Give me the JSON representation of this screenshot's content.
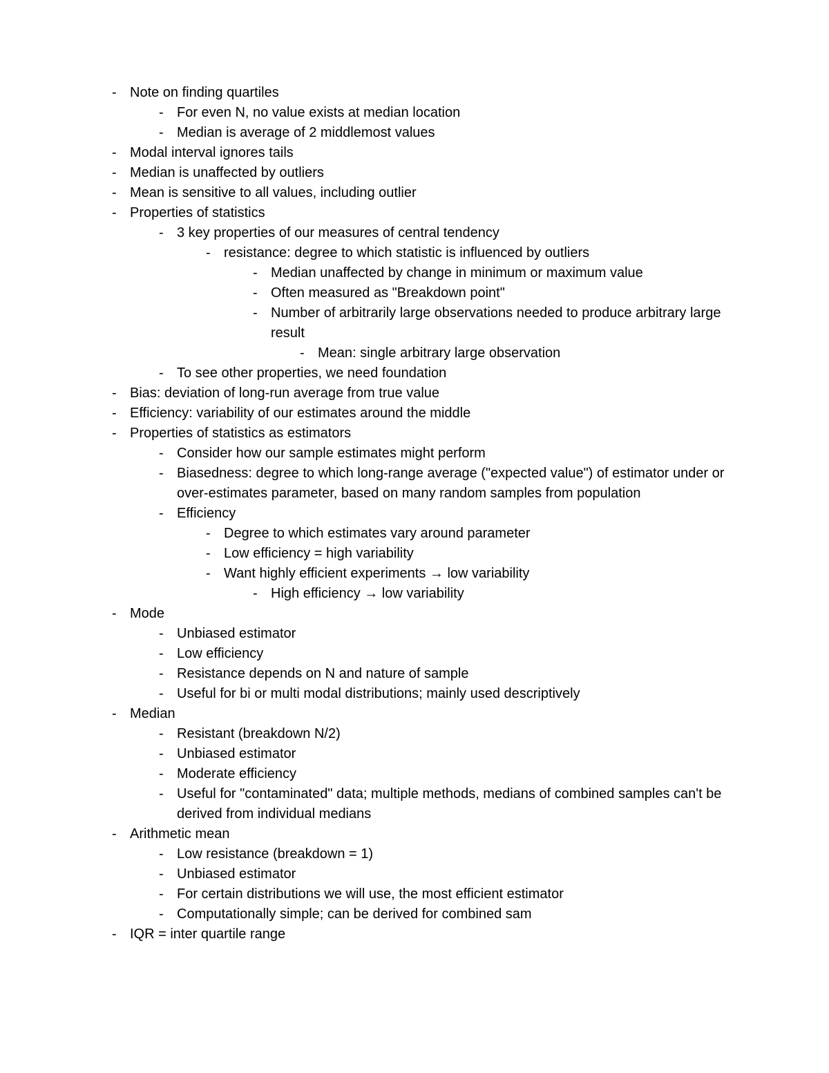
{
  "doc": {
    "font_family": "Arial",
    "font_size_pt": 11,
    "text_color": "#000000",
    "background_color": "#ffffff",
    "bullet_char": "-",
    "items": [
      {
        "t": "Note on finding quartiles",
        "c": [
          {
            "t": "For even N, no value exists at median location"
          },
          {
            "t": "Median is average of 2 middlemost values"
          }
        ]
      },
      {
        "t": "Modal interval ignores tails"
      },
      {
        "t": "Median is unaffected by outliers"
      },
      {
        "t": "Mean is sensitive to all values, including outlier"
      },
      {
        "t": "Properties of statistics",
        "c": [
          {
            "t": "3 key properties of our measures of central tendency",
            "c": [
              {
                "t": "resistance: degree to which statistic is influenced by outliers",
                "c": [
                  {
                    "t": "Median unaffected by change in minimum or maximum value"
                  },
                  {
                    "t": "Often measured as \"Breakdown point\""
                  },
                  {
                    "t": "Number of arbitrarily large observations needed to produce arbitrary large result",
                    "c": [
                      {
                        "t": "Mean: single arbitrary large observation"
                      }
                    ]
                  }
                ]
              }
            ]
          },
          {
            "t": "To see other properties, we need foundation"
          }
        ]
      },
      {
        "t": "Bias: deviation of long-run average from true value"
      },
      {
        "t": "Efficiency: variability of our estimates around the middle"
      },
      {
        "t": "Properties of statistics as estimators",
        "c": [
          {
            "t": "Consider how our sample estimates might perform"
          },
          {
            "t": "Biasedness: degree to which long-range average (\"expected value\") of estimator under or over-estimates parameter, based on many random samples from population"
          },
          {
            "t": "Efficiency",
            "c": [
              {
                "t": "Degree to which estimates vary around parameter"
              },
              {
                "t": "Low efficiency = high variability"
              },
              {
                "t": "Want highly efficient experiments → low variability",
                "c": [
                  {
                    "t": "High efficiency → low variability"
                  }
                ]
              }
            ]
          }
        ]
      },
      {
        "t": "Mode",
        "c": [
          {
            "t": "Unbiased estimator"
          },
          {
            "t": "Low efficiency"
          },
          {
            "t": "Resistance depends on N and nature of sample"
          },
          {
            "t": "Useful for bi or multi modal distributions; mainly used descriptively"
          }
        ]
      },
      {
        "t": "Median",
        "c": [
          {
            "t": "Resistant (breakdown N/2)"
          },
          {
            "t": "Unbiased estimator"
          },
          {
            "t": "Moderate efficiency"
          },
          {
            "t": "Useful for \"contaminated\" data; multiple methods, medians of combined samples can't be derived from individual medians"
          }
        ]
      },
      {
        "t": "Arithmetic mean",
        "c": [
          {
            "t": "Low resistance (breakdown = 1)"
          },
          {
            "t": "Unbiased estimator"
          },
          {
            "t": "For certain distributions we will use, the most efficient estimator"
          },
          {
            "t": "Computationally simple; can be derived for combined sam"
          }
        ]
      },
      {
        "t": "IQR = inter quartile range"
      }
    ]
  }
}
